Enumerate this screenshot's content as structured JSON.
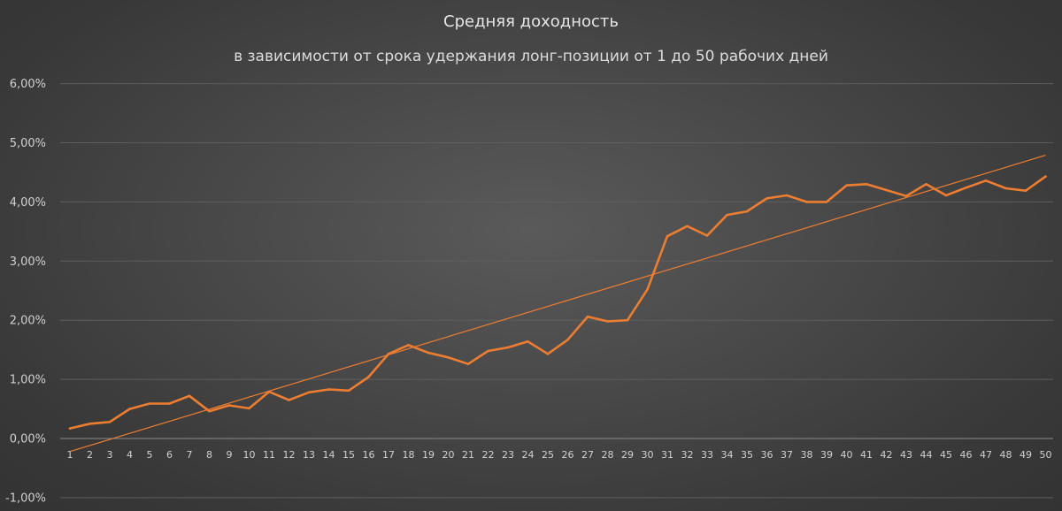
{
  "chart_data": {
    "type": "line",
    "title": "Средняя доходность",
    "subtitle": "в зависимости от срока удержания лонг-позиции от 1 до 50 рабочих дней",
    "x": [
      1,
      2,
      3,
      4,
      5,
      6,
      7,
      8,
      9,
      10,
      11,
      12,
      13,
      14,
      15,
      16,
      17,
      18,
      19,
      20,
      21,
      22,
      23,
      24,
      25,
      26,
      27,
      28,
      29,
      30,
      31,
      32,
      33,
      34,
      35,
      36,
      37,
      38,
      39,
      40,
      41,
      42,
      43,
      44,
      45,
      46,
      47,
      48,
      49,
      50
    ],
    "series": [
      {
        "values": [
          0.17,
          0.25,
          0.28,
          0.5,
          0.59,
          0.59,
          0.72,
          0.46,
          0.56,
          0.51,
          0.79,
          0.65,
          0.78,
          0.83,
          0.81,
          1.04,
          1.43,
          1.58,
          1.45,
          1.37,
          1.26,
          1.48,
          1.54,
          1.64,
          1.43,
          1.67,
          2.06,
          1.98,
          2.0,
          2.52,
          3.42,
          3.59,
          3.43,
          3.78,
          3.84,
          4.06,
          4.11,
          4.0,
          4.0,
          4.28,
          4.3,
          4.2,
          4.1,
          4.3,
          4.11,
          4.24,
          4.36,
          4.23,
          4.19,
          4.43
        ],
        "color": "#ed7d31"
      }
    ],
    "trendline": {
      "type": "linear",
      "color": "#ed7d31",
      "start_value": -0.22,
      "end_value": 4.79
    },
    "y_unit": "%",
    "ylim": [
      -1,
      6
    ],
    "yticks": [
      -1,
      0,
      1,
      2,
      3,
      4,
      5,
      6
    ],
    "ytick_labels": [
      "-1,00%",
      "0,00%",
      "1,00%",
      "2,00%",
      "3,00%",
      "4,00%",
      "5,00%",
      "6,00%"
    ],
    "grid": true,
    "legend": false,
    "colors": {
      "line": "#ed7d31",
      "grid": "#5e5e5e",
      "axis": "#8a8a8a",
      "text": "#d9d9d9"
    }
  }
}
